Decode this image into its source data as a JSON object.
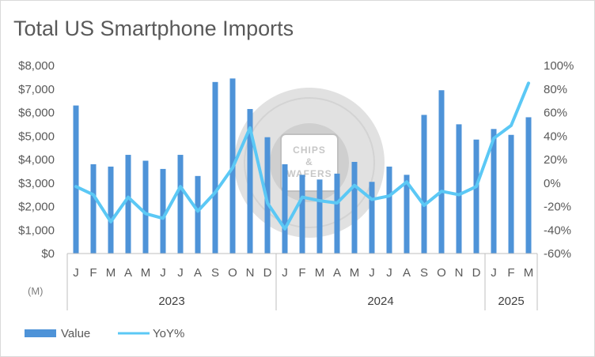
{
  "chart_data": {
    "type": "bar",
    "title": "Total US Smartphone Imports",
    "unit_note": "(M)",
    "categories": [
      "J",
      "F",
      "M",
      "A",
      "M",
      "J",
      "J",
      "A",
      "S",
      "O",
      "N",
      "D",
      "J",
      "F",
      "M",
      "A",
      "M",
      "J",
      "J",
      "A",
      "S",
      "O",
      "N",
      "D",
      "J",
      "F",
      "M"
    ],
    "years": [
      {
        "label": "2023",
        "count": 12
      },
      {
        "label": "2024",
        "count": 12
      },
      {
        "label": "2025",
        "count": 3
      }
    ],
    "series": [
      {
        "name": "Value",
        "type": "bar",
        "axis": "left",
        "color": "#4e93d8",
        "values": [
          6300,
          3800,
          3700,
          4200,
          3950,
          3600,
          4200,
          3300,
          7300,
          7450,
          6150,
          4950,
          3800,
          3350,
          3150,
          3400,
          3900,
          3050,
          3700,
          3350,
          5900,
          6950,
          5500,
          4850,
          5300,
          5050,
          5800
        ]
      },
      {
        "name": "YoY%",
        "type": "line",
        "axis": "right",
        "color": "#5bc8f5",
        "values": [
          -3,
          -10,
          -33,
          -12,
          -26,
          -30,
          -3,
          -24,
          -8,
          13,
          47,
          -17,
          -39,
          -12,
          -15,
          -17,
          -2,
          -14,
          -11,
          1,
          -19,
          -7,
          -10,
          -3,
          38,
          49,
          85
        ]
      }
    ],
    "y_left": {
      "min": 0,
      "max": 8000,
      "ticks": [
        "$0",
        "$1,000",
        "$2,000",
        "$3,000",
        "$4,000",
        "$5,000",
        "$6,000",
        "$7,000",
        "$8,000"
      ]
    },
    "y_right": {
      "min": -60,
      "max": 100,
      "ticks": [
        "-60%",
        "-40%",
        "-20%",
        "0%",
        "20%",
        "40%",
        "60%",
        "80%",
        "100%"
      ]
    },
    "grid": false,
    "legend_position": "bottom-left"
  },
  "watermark": {
    "line1": "CHIPS",
    "line2": "&",
    "line3": "WAFERS"
  }
}
